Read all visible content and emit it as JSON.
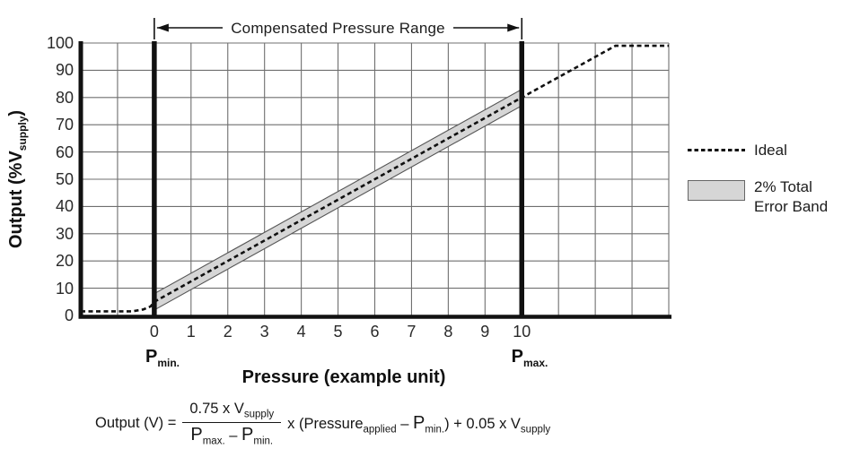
{
  "colors": {
    "background": "#ffffff",
    "grid": "#6f6f6f",
    "line": "#111111",
    "band_fill": "#d6d6d6",
    "band_edge": "#555555",
    "text": "#1a1a1a"
  },
  "chart_data": {
    "type": "line",
    "title": "",
    "xlabel": "Pressure (example unit)",
    "ylabel": "Output (%Vsupply)",
    "xlim": [
      -2,
      14
    ],
    "ylim": [
      0,
      100
    ],
    "x_ticks": [
      0,
      1,
      2,
      3,
      4,
      5,
      6,
      7,
      8,
      9,
      10
    ],
    "y_ticks": [
      0,
      10,
      20,
      30,
      40,
      50,
      60,
      70,
      80,
      90,
      100
    ],
    "grid": true,
    "legend_position": "right",
    "series": [
      {
        "name": "Ideal",
        "type": "line",
        "style": "dashed",
        "color": "#111111",
        "points": [
          [
            -2,
            1.5
          ],
          [
            -0.6,
            1.5
          ],
          [
            -0.3,
            2.2
          ],
          [
            -0.1,
            3.3
          ],
          [
            0,
            5
          ],
          [
            10,
            80
          ],
          [
            12.55,
            99
          ],
          [
            14,
            99
          ]
        ]
      },
      {
        "name": "2% Total Error Band",
        "type": "band",
        "fill": "#d6d6d6",
        "edge": "#555555",
        "polygon": [
          [
            0,
            2
          ],
          [
            10,
            77
          ],
          [
            10,
            83
          ],
          [
            0,
            8
          ]
        ]
      }
    ],
    "reference_lines": [
      {
        "x": 0,
        "label": "Pmin.",
        "style": "thick-solid"
      },
      {
        "x": 10,
        "label": "Pmax.",
        "style": "thick-solid"
      }
    ],
    "annotation": {
      "text": "Compensated Pressure Range",
      "x_from": 0,
      "x_to": 10
    }
  },
  "axes": {
    "y_title_main": "Output (%V",
    "y_title_sub": "supply",
    "y_title_close": ")",
    "x_title": "Pressure (example unit)",
    "pmin_main": "P",
    "pmin_sub": "min.",
    "pmax_main": "P",
    "pmax_sub": "max."
  },
  "legend": {
    "ideal": "Ideal",
    "band_line1": "2% Total",
    "band_line2": "Error Band"
  },
  "formula": {
    "lhs": "Output (V) =",
    "num_main": "0.75 x V",
    "num_sub": "supply",
    "den_p1": "P",
    "den_p1_sub": "max.",
    "den_minus": "–",
    "den_p2": "P",
    "den_p2_sub": "min.",
    "times": "x",
    "open_pressure": "(Pressure",
    "applied_sub": "applied",
    "minus2": "–",
    "p_min": "P",
    "p_min_sub": "min.",
    "close_paren": ")",
    "plus_tail": "+ 0.05 x V",
    "tail_sub": "supply"
  }
}
